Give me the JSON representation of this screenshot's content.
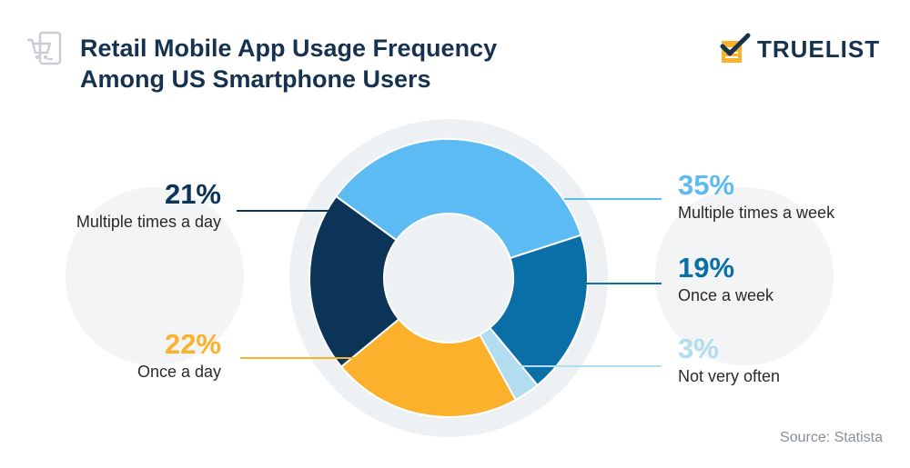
{
  "title": "Retail Mobile App Usage Frequency\nAmong US Smartphone Users",
  "logo": {
    "text": "TRUELIST"
  },
  "source": "Source: Statista",
  "colors": {
    "multiple_week": "#5bbbf2",
    "once_week": "#0a6fa6",
    "not_often": "#b2dcef",
    "once_day": "#fbb12b",
    "multiple_day": "#0b3458",
    "title": "#16324f",
    "ring": "#eef1f4"
  },
  "chart_data": {
    "type": "pie",
    "donut": true,
    "title": "Retail Mobile App Usage Frequency Among US Smartphone Users",
    "unit": "%",
    "slices": [
      {
        "label": "Multiple times a week",
        "value": 35,
        "display": "35%",
        "color": "#5bbbf2"
      },
      {
        "label": "Once a week",
        "value": 19,
        "display": "19%",
        "color": "#0a6fa6"
      },
      {
        "label": "Not very often",
        "value": 3,
        "display": "3%",
        "color": "#b2dcef"
      },
      {
        "label": "Once a day",
        "value": 22,
        "display": "22%",
        "color": "#fbb12b"
      },
      {
        "label": "Multiple times a day",
        "value": 21,
        "display": "21%",
        "color": "#0b3458"
      }
    ]
  }
}
